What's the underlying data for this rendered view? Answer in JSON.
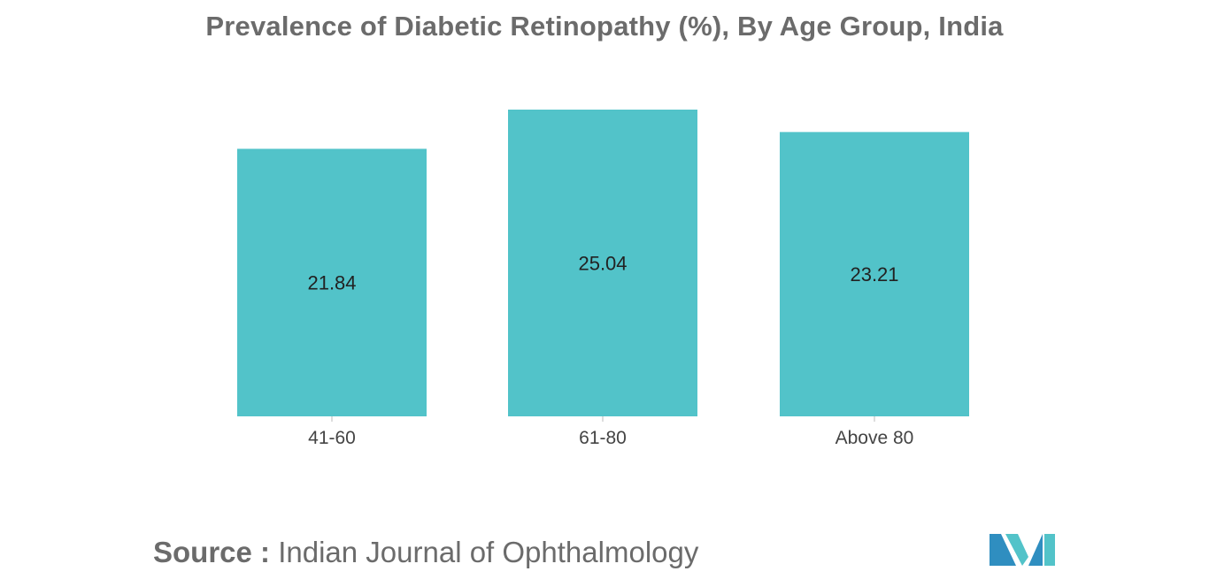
{
  "chart_data": {
    "type": "bar",
    "title": "Prevalence of Diabetic Retinopathy (%), By Age Group, India",
    "categories": [
      "41-60",
      "61-80",
      "Above 80"
    ],
    "values": [
      21.84,
      25.04,
      23.21
    ],
    "data_labels": [
      "21.84",
      "25.04",
      "23.21"
    ],
    "xlabel": "",
    "ylabel": "",
    "ylim": [
      0,
      25.04
    ],
    "grid": false,
    "legend": "none",
    "bar_color": "#52c3c9"
  },
  "source": {
    "key": "Source :",
    "value": "Indian Journal of Ophthalmology"
  },
  "logo": {
    "name": "mordor-intelligence-logo",
    "color_dark": "#2f8ec0",
    "color_light": "#52c3c9"
  }
}
